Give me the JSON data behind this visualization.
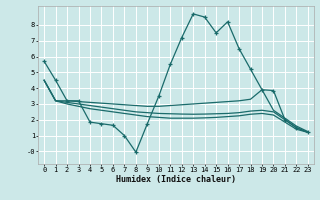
{
  "xlabel": "Humidex (Indice chaleur)",
  "bg_color": "#cce8e8",
  "grid_color": "#ffffff",
  "line_color": "#1a6b6b",
  "xlim": [
    -0.5,
    23.5
  ],
  "ylim": [
    -0.8,
    9.2
  ],
  "yticks": [
    0,
    1,
    2,
    3,
    4,
    5,
    6,
    7,
    8
  ],
  "ytick_labels": [
    "-0",
    "1",
    "2",
    "3",
    "4",
    "5",
    "6",
    "7",
    "8"
  ],
  "xticks": [
    0,
    1,
    2,
    3,
    4,
    5,
    6,
    7,
    8,
    9,
    10,
    11,
    12,
    13,
    14,
    15,
    16,
    17,
    18,
    19,
    20,
    21,
    22,
    23
  ],
  "line1_x": [
    0,
    1,
    2,
    3,
    4,
    5,
    6,
    7,
    8,
    9,
    10,
    11,
    12,
    13,
    14,
    15,
    16,
    17,
    18,
    19,
    20,
    21,
    22,
    23
  ],
  "line1_y": [
    5.7,
    4.5,
    3.2,
    3.2,
    1.85,
    1.75,
    1.65,
    1.0,
    -0.05,
    1.75,
    3.5,
    5.5,
    7.2,
    8.7,
    8.5,
    7.5,
    8.2,
    6.5,
    5.2,
    3.9,
    3.85,
    2.0,
    1.5,
    1.2
  ],
  "line2_x": [
    0,
    1,
    2,
    3,
    4,
    5,
    6,
    7,
    8,
    9,
    10,
    11,
    12,
    13,
    14,
    15,
    16,
    17,
    18,
    19,
    20,
    21,
    22,
    23
  ],
  "line2_y": [
    4.5,
    3.2,
    3.2,
    3.15,
    3.1,
    3.05,
    3.0,
    2.95,
    2.9,
    2.85,
    2.85,
    2.9,
    2.95,
    3.0,
    3.05,
    3.1,
    3.15,
    3.2,
    3.3,
    3.9,
    2.6,
    2.1,
    1.6,
    1.25
  ],
  "line3_x": [
    0,
    1,
    2,
    3,
    4,
    5,
    6,
    7,
    8,
    9,
    10,
    11,
    12,
    13,
    14,
    15,
    16,
    17,
    18,
    19,
    20,
    21,
    22,
    23
  ],
  "line3_y": [
    4.5,
    3.2,
    3.1,
    3.0,
    2.9,
    2.8,
    2.7,
    2.6,
    2.5,
    2.45,
    2.4,
    2.38,
    2.36,
    2.35,
    2.36,
    2.38,
    2.4,
    2.45,
    2.55,
    2.6,
    2.5,
    2.0,
    1.5,
    1.2
  ],
  "line4_x": [
    0,
    1,
    2,
    3,
    4,
    5,
    6,
    7,
    8,
    9,
    10,
    11,
    12,
    13,
    14,
    15,
    16,
    17,
    18,
    19,
    20,
    21,
    22,
    23
  ],
  "line4_y": [
    4.5,
    3.2,
    3.0,
    2.85,
    2.7,
    2.6,
    2.5,
    2.4,
    2.3,
    2.2,
    2.15,
    2.1,
    2.1,
    2.1,
    2.12,
    2.15,
    2.2,
    2.25,
    2.35,
    2.4,
    2.3,
    1.85,
    1.4,
    1.2
  ]
}
